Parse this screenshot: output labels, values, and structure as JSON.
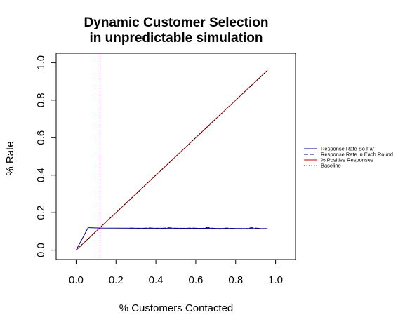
{
  "chart_data": {
    "type": "line",
    "title": [
      "Dynamic Customer Selection",
      "in unpredictable simulation"
    ],
    "xlabel": "% Customers Contacted",
    "ylabel": "% Rate",
    "xlim": [
      -0.1,
      1.1
    ],
    "ylim": [
      -0.05,
      1.05
    ],
    "xticks": [
      "0.0",
      "0.2",
      "0.4",
      "0.6",
      "0.8",
      "1.0"
    ],
    "yticks": [
      "0.0",
      "0.2",
      "0.4",
      "0.6",
      "0.8",
      "1.0"
    ],
    "grid": false,
    "legend_position": "right",
    "vline": {
      "x": 0.12,
      "color": "#cc00cc",
      "style": "dotted"
    },
    "series": [
      {
        "name": "Response Rate So Far",
        "color": "#00008b",
        "style": "solid",
        "x": [
          0,
          0.06,
          0.12,
          0.3,
          0.5,
          0.7,
          0.96
        ],
        "y": [
          0,
          0.12,
          0.118,
          0.117,
          0.117,
          0.116,
          0.115
        ]
      },
      {
        "name": "Response Rate in Each Round",
        "color": "#00008b",
        "style": "dashed",
        "x": [
          0.27,
          0.33,
          0.36,
          0.42,
          0.46,
          0.52,
          0.58,
          0.63,
          0.66,
          0.72,
          0.75,
          0.84,
          0.88,
          0.92
        ],
        "y": [
          0.118,
          0.115,
          0.119,
          0.114,
          0.12,
          0.115,
          0.118,
          0.116,
          0.121,
          0.112,
          0.118,
          0.113,
          0.12,
          0.116
        ]
      },
      {
        "name": "% Positive Responses",
        "color": "#cc0000",
        "style": "solid",
        "x": [
          0,
          0.96
        ],
        "y": [
          0,
          0.96
        ]
      },
      {
        "name": "Baseline",
        "color": "#000000",
        "style": "dotted",
        "x": [
          0,
          0.96
        ],
        "y": [
          0,
          0.96
        ]
      }
    ]
  }
}
